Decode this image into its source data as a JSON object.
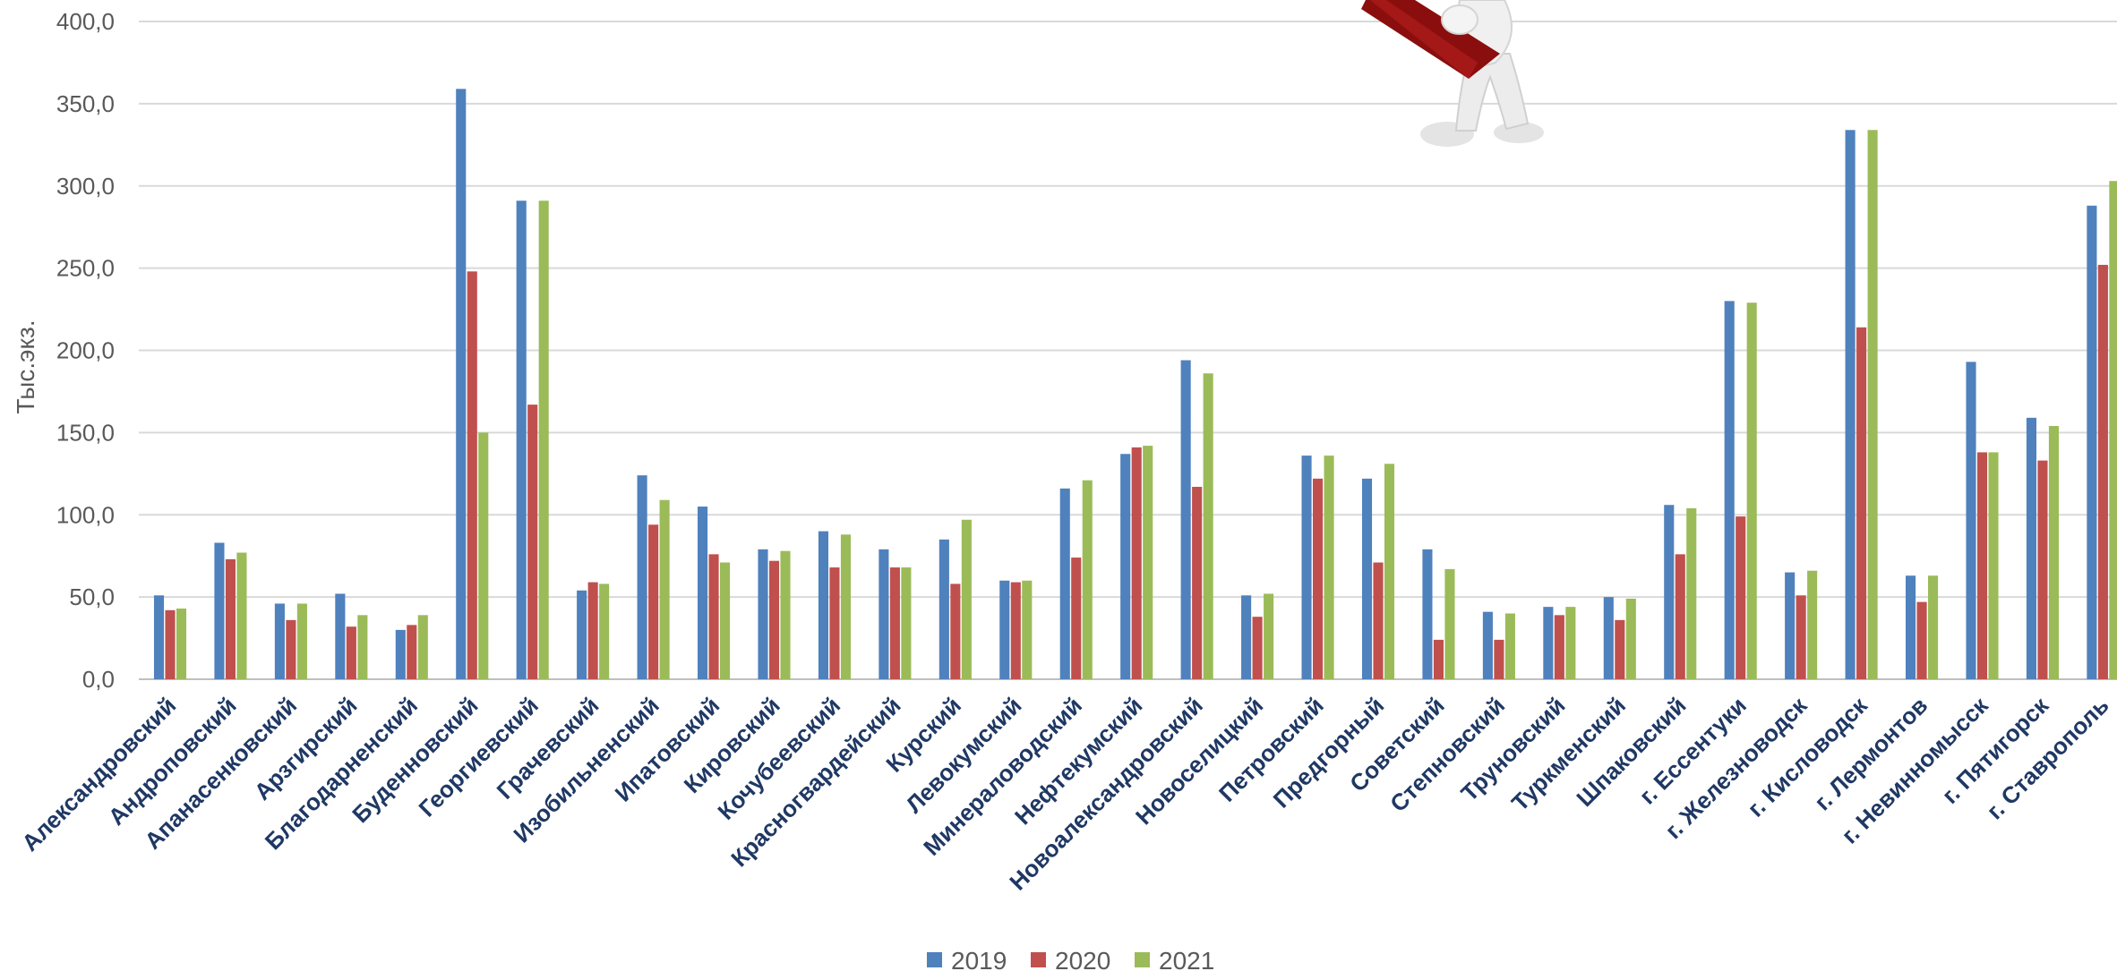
{
  "chart_data": {
    "type": "bar",
    "title": "",
    "xlabel": "",
    "ylabel": "Тыс.экз.",
    "ylim": [
      0,
      400
    ],
    "yticks": [
      "0,0",
      "50,0",
      "100,0",
      "150,0",
      "200,0",
      "250,0",
      "300,0",
      "350,0",
      "400,0"
    ],
    "grid": true,
    "legend_position": "bottom",
    "colors": [
      "#4f81bd",
      "#c0504d",
      "#9bbb59"
    ],
    "categories": [
      "Александровский",
      "Андроповский",
      "Апанасенковский",
      "Арзгирский",
      "Благодарненский",
      "Буденновский",
      "Георгиевский",
      "Грачевский",
      "Изобильненский",
      "Ипатовский",
      "Кировский",
      "Кочубеевский",
      "Красногвардейский",
      "Курский",
      "Левокумский",
      "Минераловодский",
      "Нефтекумский",
      "Новоалександровский",
      "Новоселицкий",
      "Петровский",
      "Предгорный",
      "Советский",
      "Степновский",
      "Труновский",
      "Туркменский",
      "Шпаковский",
      "г. Ессентуки",
      "г. Железноводск",
      "г. Кисловодск",
      "г. Лермонтов",
      "г. Невинномысск",
      "г. Пятигорск",
      "г. Ставрополь"
    ],
    "series": [
      {
        "name": "2019",
        "values": [
          51,
          83,
          46,
          52,
          30,
          359,
          291,
          54,
          124,
          105,
          79,
          90,
          79,
          85,
          60,
          116,
          137,
          194,
          51,
          136,
          122,
          79,
          41,
          44,
          50,
          106,
          230,
          65,
          334,
          63,
          193,
          159,
          288
        ]
      },
      {
        "name": "2020",
        "values": [
          42,
          73,
          36,
          32,
          33,
          248,
          167,
          59,
          94,
          76,
          72,
          68,
          68,
          58,
          59,
          74,
          141,
          117,
          38,
          122,
          71,
          24,
          24,
          39,
          36,
          76,
          99,
          51,
          214,
          47,
          138,
          133,
          252
        ]
      },
      {
        "name": "2021",
        "values": [
          43,
          77,
          46,
          39,
          39,
          150,
          291,
          58,
          109,
          71,
          78,
          88,
          68,
          97,
          60,
          121,
          142,
          186,
          52,
          136,
          131,
          67,
          40,
          44,
          49,
          104,
          229,
          66,
          334,
          63,
          138,
          154,
          303
        ]
      }
    ]
  }
}
